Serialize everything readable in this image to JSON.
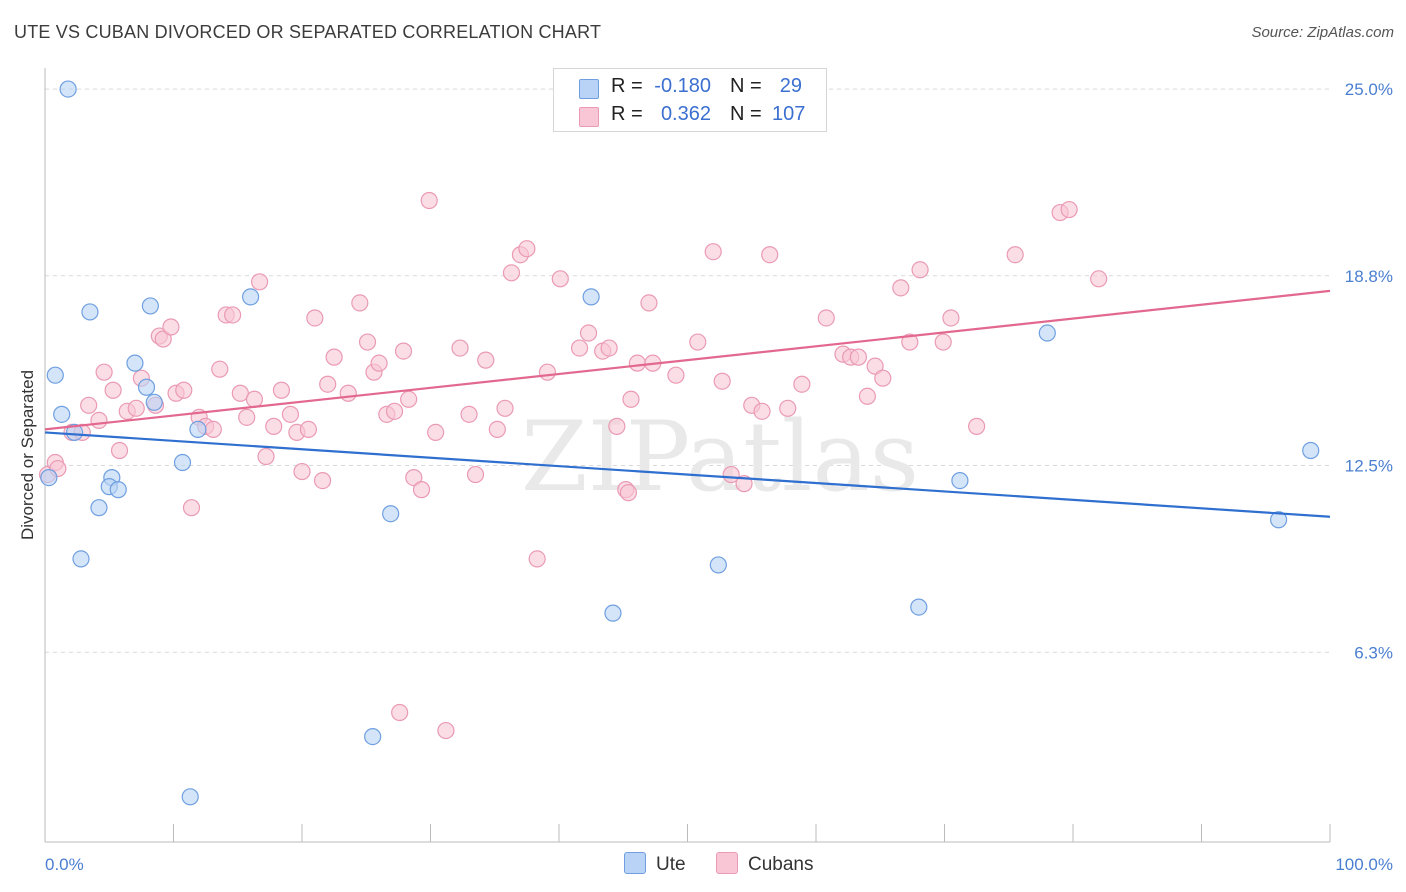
{
  "title": "UTE VS CUBAN DIVORCED OR SEPARATED CORRELATION CHART",
  "source": "Source: ZipAtlas.com",
  "watermark": "ZIPatlas",
  "legend": {
    "rows": [
      {
        "r_label": "R =",
        "r_value": "-0.180",
        "n_label": "N =",
        "n_value": "29"
      },
      {
        "r_label": "R =",
        "r_value": "0.362",
        "n_label": "N =",
        "n_value": "107"
      }
    ]
  },
  "bottom_legend": [
    "Ute",
    "Cubans"
  ],
  "colors": {
    "ute_fill": "#b8d3f5",
    "ute_stroke": "#6f9fe0",
    "ute_line": "#2f6fcf",
    "cuban_fill": "#f9c6d6",
    "cuban_stroke": "#ea9ab4",
    "cuban_line": "#e2688f",
    "grid": "#d9d9d9",
    "tick_label": "#4a7fd0"
  },
  "chart_data": {
    "type": "scatter",
    "title": "UTE VS CUBAN DIVORCED OR SEPARATED CORRELATION CHART",
    "xlabel": "",
    "ylabel": "Divorced or Separated",
    "xlim": [
      0,
      100
    ],
    "ylim": [
      0,
      25.7
    ],
    "x_tick_labels": [
      "0.0%",
      "100.0%"
    ],
    "y_ticks": [
      6.3,
      12.5,
      18.8,
      25.0
    ],
    "y_tick_labels": [
      "6.3%",
      "12.5%",
      "18.8%",
      "25.0%"
    ],
    "grid": true,
    "series": [
      {
        "name": "Ute",
        "r": -0.18,
        "n": 29,
        "trend": {
          "x0": 0,
          "y0": 13.6,
          "x1": 100,
          "y1": 10.8
        },
        "points": [
          [
            1.8,
            25.0
          ],
          [
            3.5,
            17.6
          ],
          [
            8.2,
            17.8
          ],
          [
            16.0,
            18.1
          ],
          [
            42.5,
            18.1
          ],
          [
            78.0,
            16.9
          ],
          [
            0.8,
            15.5
          ],
          [
            7.0,
            15.9
          ],
          [
            7.9,
            15.1
          ],
          [
            8.5,
            14.6
          ],
          [
            1.3,
            14.2
          ],
          [
            11.9,
            13.7
          ],
          [
            2.3,
            13.6
          ],
          [
            10.7,
            12.6
          ],
          [
            5.2,
            12.1
          ],
          [
            0.3,
            12.1
          ],
          [
            5.0,
            11.8
          ],
          [
            5.7,
            11.7
          ],
          [
            4.2,
            11.1
          ],
          [
            26.9,
            10.9
          ],
          [
            71.2,
            12.0
          ],
          [
            98.5,
            13.0
          ],
          [
            96.0,
            10.7
          ],
          [
            2.8,
            9.4
          ],
          [
            52.4,
            9.2
          ],
          [
            44.2,
            7.6
          ],
          [
            68.0,
            7.8
          ],
          [
            25.5,
            3.5
          ],
          [
            11.3,
            1.5
          ]
        ]
      },
      {
        "name": "Cubans",
        "r": 0.362,
        "n": 107,
        "trend": {
          "x0": 0,
          "y0": 13.7,
          "x1": 100,
          "y1": 18.3
        },
        "points": [
          [
            0.2,
            12.2
          ],
          [
            0.8,
            12.6
          ],
          [
            1.0,
            12.4
          ],
          [
            2.1,
            13.6
          ],
          [
            2.9,
            13.6
          ],
          [
            3.4,
            14.5
          ],
          [
            4.2,
            14.0
          ],
          [
            4.6,
            15.6
          ],
          [
            5.3,
            15.0
          ],
          [
            5.8,
            13.0
          ],
          [
            6.4,
            14.3
          ],
          [
            7.1,
            14.4
          ],
          [
            7.5,
            15.4
          ],
          [
            8.6,
            14.5
          ],
          [
            8.9,
            16.8
          ],
          [
            9.2,
            16.7
          ],
          [
            9.8,
            17.1
          ],
          [
            10.2,
            14.9
          ],
          [
            10.8,
            15.0
          ],
          [
            11.4,
            11.1
          ],
          [
            12.0,
            14.1
          ],
          [
            12.5,
            13.8
          ],
          [
            13.1,
            13.7
          ],
          [
            13.6,
            15.7
          ],
          [
            14.1,
            17.5
          ],
          [
            14.6,
            17.5
          ],
          [
            15.2,
            14.9
          ],
          [
            15.7,
            14.1
          ],
          [
            16.3,
            14.7
          ],
          [
            16.7,
            18.6
          ],
          [
            17.2,
            12.8
          ],
          [
            17.8,
            13.8
          ],
          [
            18.4,
            15.0
          ],
          [
            19.1,
            14.2
          ],
          [
            19.6,
            13.6
          ],
          [
            20.0,
            12.3
          ],
          [
            20.5,
            13.7
          ],
          [
            21.0,
            17.4
          ],
          [
            21.6,
            12.0
          ],
          [
            22.0,
            15.2
          ],
          [
            22.5,
            16.1
          ],
          [
            23.6,
            14.9
          ],
          [
            24.5,
            17.9
          ],
          [
            25.1,
            16.6
          ],
          [
            25.6,
            15.6
          ],
          [
            26.0,
            15.9
          ],
          [
            26.6,
            14.2
          ],
          [
            27.2,
            14.3
          ],
          [
            27.9,
            16.3
          ],
          [
            28.3,
            14.7
          ],
          [
            28.7,
            12.1
          ],
          [
            29.3,
            11.7
          ],
          [
            29.9,
            21.3
          ],
          [
            30.4,
            13.6
          ],
          [
            31.2,
            3.7
          ],
          [
            32.3,
            16.4
          ],
          [
            33.0,
            14.2
          ],
          [
            33.5,
            12.2
          ],
          [
            34.3,
            16.0
          ],
          [
            35.2,
            13.7
          ],
          [
            35.8,
            14.4
          ],
          [
            36.3,
            18.9
          ],
          [
            37.0,
            19.5
          ],
          [
            37.5,
            19.7
          ],
          [
            38.3,
            9.4
          ],
          [
            39.1,
            15.6
          ],
          [
            40.1,
            18.7
          ],
          [
            41.6,
            16.4
          ],
          [
            42.3,
            16.9
          ],
          [
            43.4,
            16.3
          ],
          [
            43.9,
            16.4
          ],
          [
            44.5,
            13.8
          ],
          [
            45.2,
            11.7
          ],
          [
            45.6,
            14.7
          ],
          [
            46.1,
            15.9
          ],
          [
            47.0,
            17.9
          ],
          [
            47.3,
            15.9
          ],
          [
            49.1,
            15.5
          ],
          [
            50.8,
            16.6
          ],
          [
            52.0,
            19.6
          ],
          [
            52.7,
            15.3
          ],
          [
            53.4,
            12.2
          ],
          [
            54.4,
            11.9
          ],
          [
            55.0,
            14.5
          ],
          [
            55.8,
            14.3
          ],
          [
            56.4,
            19.5
          ],
          [
            57.8,
            14.4
          ],
          [
            58.9,
            15.2
          ],
          [
            60.8,
            17.4
          ],
          [
            62.1,
            16.2
          ],
          [
            62.7,
            16.1
          ],
          [
            63.3,
            16.1
          ],
          [
            64.0,
            14.8
          ],
          [
            64.6,
            15.8
          ],
          [
            65.2,
            15.4
          ],
          [
            66.6,
            18.4
          ],
          [
            67.3,
            16.6
          ],
          [
            68.1,
            19.0
          ],
          [
            69.9,
            16.6
          ],
          [
            70.5,
            17.4
          ],
          [
            72.5,
            13.8
          ],
          [
            75.5,
            19.5
          ],
          [
            79.0,
            20.9
          ],
          [
            79.7,
            21.0
          ],
          [
            82.0,
            18.7
          ],
          [
            27.6,
            4.3
          ],
          [
            45.4,
            11.6
          ]
        ]
      }
    ]
  }
}
